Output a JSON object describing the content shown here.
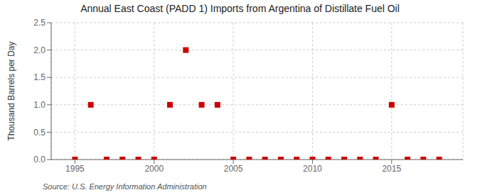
{
  "chart_data": {
    "type": "scatter",
    "title": "Annual East Coast (PADD 1) Imports from Argentina of Distillate Fuel Oil",
    "ylabel": "Thousand Barrels per Day",
    "annotation": "Source: U.S. Energy Information Administration",
    "x": [
      1995,
      1996,
      1997,
      1998,
      1999,
      2000,
      2001,
      2002,
      2003,
      2004,
      2005,
      2006,
      2007,
      2008,
      2009,
      2010,
      2011,
      2012,
      2013,
      2014,
      2015,
      2016,
      2017,
      2018
    ],
    "values": [
      0.0,
      1.0,
      0.0,
      0.0,
      0.0,
      0.0,
      1.0,
      2.0,
      1.0,
      1.0,
      0.0,
      0.0,
      0.0,
      0.0,
      0.0,
      0.0,
      0.0,
      0.0,
      0.0,
      0.0,
      1.0,
      0.0,
      0.0,
      0.0
    ],
    "color": "#cc0000",
    "marker": "square",
    "xlim": [
      1993.5,
      2019.5
    ],
    "ylim": [
      0.0,
      2.5
    ],
    "xticks": [
      1995,
      2000,
      2005,
      2010,
      2015
    ],
    "yticks": [
      {
        "value": 0.0,
        "label": "0.0"
      },
      0.5,
      {
        "value": 1.0,
        "label": "1.0"
      },
      1.5,
      {
        "value": 2.0,
        "label": "2.0"
      },
      2.5
    ],
    "grid": true
  }
}
